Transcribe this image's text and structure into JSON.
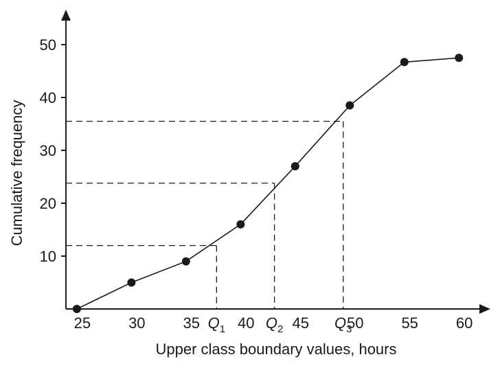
{
  "chart_data": {
    "type": "line",
    "title": "",
    "xlabel": "Upper class boundary values, hours",
    "ylabel": "Cumulative frequency",
    "xlim": [
      23.5,
      61.5
    ],
    "ylim": [
      0,
      55
    ],
    "grid": false,
    "x_ticks": [
      {
        "value": 25,
        "label": "25"
      },
      {
        "value": 30,
        "label": "30"
      },
      {
        "value": 35,
        "label": "35"
      },
      {
        "value": 40,
        "label": "40"
      },
      {
        "value": 45,
        "label": "45"
      },
      {
        "value": 50,
        "label": "50"
      },
      {
        "value": 55,
        "label": "55"
      },
      {
        "value": 60,
        "label": "60"
      }
    ],
    "y_ticks": [
      {
        "value": 10,
        "label": "10"
      },
      {
        "value": 20,
        "label": "20"
      },
      {
        "value": 30,
        "label": "30"
      },
      {
        "value": 40,
        "label": "40"
      },
      {
        "value": 50,
        "label": "50"
      }
    ],
    "series": [
      {
        "points": [
          {
            "x": 24.5,
            "y": 0
          },
          {
            "x": 29.5,
            "y": 5
          },
          {
            "x": 34.5,
            "y": 9
          },
          {
            "x": 39.5,
            "y": 16
          },
          {
            "x": 44.5,
            "y": 27
          },
          {
            "x": 49.5,
            "y": 38.5
          },
          {
            "x": 54.5,
            "y": 46.7
          },
          {
            "x": 59.5,
            "y": 47.5
          }
        ]
      }
    ],
    "quartiles": [
      {
        "letter": "Q",
        "sub": "1",
        "x": 37.3,
        "y": 12
      },
      {
        "letter": "Q",
        "sub": "2",
        "x": 42.6,
        "y": 23.8
      },
      {
        "letter": "Q",
        "sub": "3",
        "x": 48.9,
        "y": 35.5
      }
    ]
  }
}
